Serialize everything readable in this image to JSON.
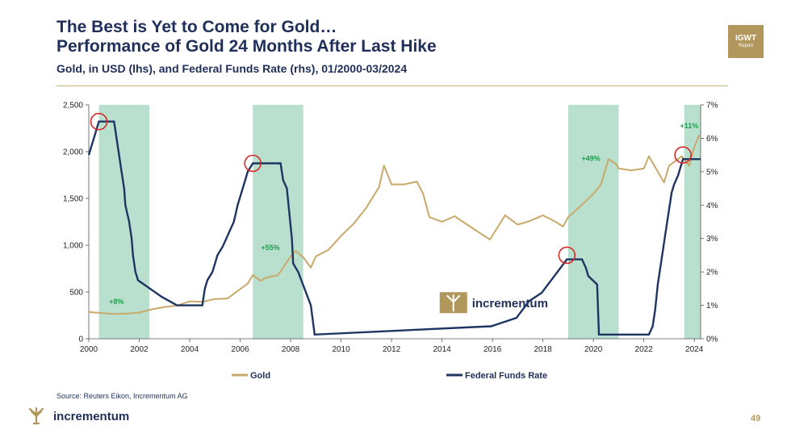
{
  "header": {
    "title_line1": "The Best is Yet to Come for Gold…",
    "title_line2": "Performance of Gold 24 Months After Last Hike",
    "subtitle": "Gold, in USD (lhs), and Federal Funds Rate (rhs), 01/2000-03/2024",
    "badge_line1": "IGWT",
    "badge_line2": "Report"
  },
  "footer": {
    "source": "Source: Reuters Eikon, Incrementum AG",
    "brand": "incrementum",
    "page_number": "49"
  },
  "colors": {
    "gold": "#c9a96a",
    "fed": "#1f3561",
    "shade": "#b9e0cf",
    "circle": "#d62828",
    "annotation": "#1e9e4a",
    "navy": "#1f2f5a"
  },
  "chart_data": {
    "type": "line",
    "x_range": [
      2000,
      2024.25
    ],
    "x_ticks": [
      "2000",
      "2002",
      "2004",
      "2006",
      "2008",
      "2010",
      "2012",
      "2014",
      "2016",
      "2018",
      "2020",
      "2022",
      "2024"
    ],
    "y_left": {
      "range": [
        0,
        2500
      ],
      "ticks": [
        "0",
        "500",
        "1,000",
        "1,500",
        "2,000",
        "2,500"
      ]
    },
    "y_right": {
      "range": [
        0,
        7
      ],
      "ticks": [
        "0%",
        "1%",
        "2%",
        "3%",
        "4%",
        "5%",
        "6%",
        "7%"
      ]
    },
    "watermark": "incrementum",
    "legend": {
      "placement": "bottom",
      "items": [
        "Gold",
        "Federal Funds Rate"
      ]
    },
    "shaded_periods": [
      [
        2000.4,
        2002.4
      ],
      [
        2006.5,
        2008.5
      ],
      [
        2019.0,
        2021.0
      ],
      [
        2023.6,
        2024.25
      ]
    ],
    "annotations": [
      {
        "text": "+8%",
        "x": 2001.1,
        "y": 370
      },
      {
        "text": "+55%",
        "x": 2007.2,
        "y": 950
      },
      {
        "text": "+49%",
        "x": 2019.9,
        "y": 1900
      },
      {
        "text": "+11%",
        "x": 2023.8,
        "y": 2250
      }
    ],
    "last_hike_markers": [
      {
        "x": 2000.4,
        "rate": 6.5
      },
      {
        "x": 2006.5,
        "rate": 5.25
      },
      {
        "x": 2018.95,
        "rate": 2.5
      },
      {
        "x": 2023.55,
        "rate": 5.5
      }
    ],
    "series": [
      {
        "name": "Gold",
        "axis": "left",
        "x": [
          2000,
          2000.5,
          2001,
          2001.5,
          2002,
          2002.5,
          2003,
          2003.5,
          2004,
          2004.5,
          2005,
          2005.5,
          2006,
          2006.3,
          2006.5,
          2006.8,
          2007,
          2007.5,
          2008,
          2008.2,
          2008.5,
          2008.8,
          2009,
          2009.5,
          2010,
          2010.5,
          2011,
          2011.5,
          2011.7,
          2012,
          2012.5,
          2013,
          2013.25,
          2013.5,
          2014,
          2014.5,
          2015,
          2015.5,
          2015.9,
          2016.5,
          2017,
          2017.5,
          2018,
          2018.5,
          2018.8,
          2019,
          2019.5,
          2020,
          2020.3,
          2020.6,
          2020.9,
          2021,
          2021.5,
          2022,
          2022.2,
          2022.8,
          2023,
          2023.5,
          2023.8,
          2024,
          2024.2
        ],
        "y": [
          285,
          275,
          265,
          270,
          280,
          315,
          340,
          355,
          400,
          395,
          425,
          430,
          530,
          590,
          680,
          620,
          650,
          680,
          880,
          940,
          870,
          760,
          880,
          950,
          1100,
          1230,
          1400,
          1620,
          1850,
          1650,
          1650,
          1680,
          1550,
          1300,
          1250,
          1310,
          1220,
          1130,
          1060,
          1320,
          1220,
          1260,
          1320,
          1250,
          1200,
          1300,
          1420,
          1550,
          1650,
          1920,
          1870,
          1820,
          1800,
          1820,
          1950,
          1670,
          1850,
          1950,
          1850,
          2050,
          2180
        ]
      },
      {
        "name": "Federal Funds Rate",
        "axis": "right",
        "x": [
          2000,
          2000.1,
          2000.2,
          2000.4,
          2001,
          2001.1,
          2001.2,
          2001.3,
          2001.4,
          2001.45,
          2001.6,
          2001.7,
          2001.75,
          2001.85,
          2001.95,
          2002.9,
          2003.5,
          2004.5,
          2004.55,
          2004.6,
          2004.7,
          2004.9,
          2005,
          2005.1,
          2005.3,
          2005.45,
          2005.6,
          2005.75,
          2005.9,
          2006.1,
          2006.3,
          2006.5,
          2007.6,
          2007.7,
          2007.85,
          2008.05,
          2008.1,
          2008.3,
          2008.8,
          2008.95,
          2015.95,
          2016.95,
          2017.2,
          2017.45,
          2017.95,
          2018.2,
          2018.45,
          2018.7,
          2018.95,
          2019.55,
          2019.7,
          2019.8,
          2020.15,
          2020.22,
          2022.2,
          2022.35,
          2022.45,
          2022.55,
          2022.7,
          2022.85,
          2023.1,
          2023.2,
          2023.35,
          2023.55,
          2024.25
        ],
        "y": [
          5.5,
          5.75,
          6,
          6.5,
          6.5,
          6,
          5.5,
          5,
          4.5,
          4,
          3.5,
          3,
          2.5,
          2,
          1.75,
          1.25,
          1,
          1,
          1.25,
          1.5,
          1.75,
          2,
          2.25,
          2.5,
          2.75,
          3,
          3.25,
          3.5,
          4,
          4.5,
          5,
          5.25,
          5.25,
          4.75,
          4.5,
          3,
          2.25,
          2,
          1,
          0.125,
          0.375,
          0.625,
          0.875,
          1.125,
          1.375,
          1.625,
          1.875,
          2.125,
          2.375,
          2.375,
          2.125,
          1.875,
          1.625,
          0.125,
          0.125,
          0.375,
          0.875,
          1.625,
          2.375,
          3.125,
          4.375,
          4.625,
          4.875,
          5.375,
          5.375
        ]
      }
    ]
  }
}
